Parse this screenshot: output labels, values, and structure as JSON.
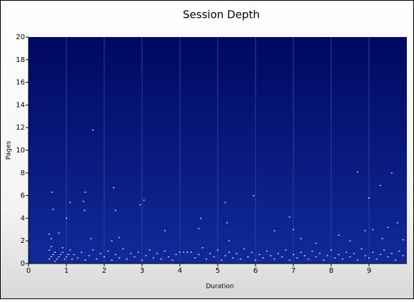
{
  "chart_data": {
    "type": "scatter",
    "title": "Session Depth",
    "xlabel": "Duration",
    "ylabel": "Pages",
    "color": "#ffffff",
    "grid": true,
    "xlim": [
      0,
      10
    ],
    "ylim": [
      0,
      20
    ],
    "xticks": [
      0,
      1,
      2,
      3,
      4,
      5,
      6,
      7,
      8,
      9
    ],
    "yticks": [
      0,
      2,
      4,
      6,
      8,
      10,
      12,
      14,
      16,
      18,
      20
    ],
    "x": [
      0.62,
      0.65,
      1.0,
      1.1,
      1.45,
      1.48,
      1.5,
      1.7,
      2.25,
      2.3,
      2.95,
      3.05,
      4.55,
      5.2,
      5.25,
      5.95,
      6.9,
      8.7,
      9.0,
      9.3,
      9.6,
      9.5,
      9.75,
      0.55,
      0.6,
      0.8,
      1.65,
      2.2,
      2.4,
      3.6,
      4.5,
      5.3,
      6.5,
      7.0,
      7.2,
      7.6,
      8.2,
      8.5,
      8.9,
      9.1,
      9.35,
      9.9,
      0.55,
      0.6,
      0.65,
      0.7,
      0.75,
      0.8,
      0.85,
      0.9,
      0.95,
      1.0,
      1.05,
      1.1,
      1.15,
      0.55,
      0.6,
      0.7,
      0.9,
      1.2,
      1.3,
      1.4,
      1.5,
      1.6,
      1.7,
      1.8,
      1.9,
      2.0,
      2.1,
      2.2,
      2.3,
      2.4,
      2.5,
      2.6,
      2.7,
      2.8,
      2.9,
      3.0,
      3.1,
      3.2,
      3.3,
      3.4,
      3.5,
      3.6,
      3.7,
      3.8,
      3.9,
      4.0,
      4.1,
      4.2,
      4.3,
      4.4,
      4.5,
      4.6,
      4.7,
      4.8,
      4.9,
      5.0,
      5.1,
      5.2,
      5.3,
      5.4,
      5.5,
      5.6,
      5.7,
      5.8,
      5.9,
      6.0,
      6.1,
      6.2,
      6.3,
      6.4,
      6.5,
      6.6,
      6.7,
      6.8,
      6.9,
      7.0,
      7.1,
      7.2,
      7.3,
      7.4,
      7.5,
      7.6,
      7.7,
      7.8,
      7.9,
      8.0,
      8.1,
      8.2,
      8.3,
      8.4,
      8.5,
      8.6,
      8.7,
      8.8,
      8.9,
      9.0,
      9.1,
      9.2,
      9.3,
      9.4,
      9.5,
      9.6,
      9.7,
      9.8,
      9.9
    ],
    "values": [
      6.3,
      4.8,
      4.0,
      5.4,
      5.5,
      4.7,
      6.3,
      11.8,
      6.7,
      4.7,
      5.2,
      5.6,
      4.0,
      5.4,
      3.6,
      6.0,
      4.1,
      8.1,
      5.8,
      6.9,
      8.0,
      3.2,
      3.6,
      2.6,
      2.2,
      2.7,
      2.2,
      2.0,
      2.3,
      2.9,
      3.1,
      2.0,
      2.9,
      3.0,
      2.2,
      1.8,
      2.5,
      2.0,
      2.9,
      3.0,
      2.2,
      2.1,
      0.4,
      0.6,
      0.8,
      1.0,
      0.4,
      0.6,
      0.8,
      1.0,
      0.4,
      0.6,
      0.8,
      1.2,
      0.4,
      1.2,
      1.5,
      0.2,
      1.4,
      0.8,
      0.5,
      1.0,
      0.3,
      0.7,
      1.2,
      0.4,
      0.9,
      0.6,
      1.1,
      0.3,
      0.8,
      0.5,
      1.3,
      0.4,
      0.9,
      0.6,
      1.0,
      0.3,
      0.7,
      1.2,
      0.5,
      0.9,
      0.4,
      1.1,
      0.6,
      0.3,
      0.8,
      1.0,
      1.0,
      1.0,
      1.0,
      0.5,
      0.8,
      1.4,
      0.4,
      0.9,
      0.6,
      1.2,
      0.3,
      0.7,
      1.0,
      0.5,
      0.9,
      0.4,
      1.3,
      0.6,
      1.0,
      0.3,
      0.8,
      0.5,
      1.1,
      0.7,
      0.4,
      0.9,
      0.6,
      1.2,
      0.3,
      0.8,
      0.5,
      1.0,
      0.7,
      0.4,
      1.1,
      0.6,
      0.9,
      0.3,
      0.7,
      1.2,
      0.5,
      0.8,
      0.4,
      1.0,
      0.6,
      0.9,
      0.3,
      1.3,
      0.7,
      0.5,
      1.0,
      0.4,
      0.8,
      1.2,
      0.6,
      0.9,
      0.3,
      1.1,
      0.7
    ]
  }
}
